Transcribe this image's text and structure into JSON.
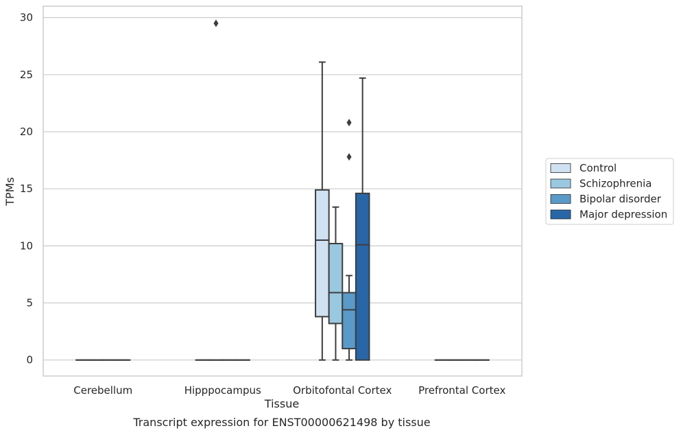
{
  "chart_data": {
    "type": "boxplot",
    "title": "Transcript expression for ENST00000621498 by tissue",
    "xlabel": "Tissue",
    "ylabel": "TPMs",
    "ylim": [
      -1.4,
      31
    ],
    "yticks": [
      0,
      5,
      10,
      15,
      20,
      25,
      30
    ],
    "grid": "horizontal",
    "legend_position": "right",
    "categories": [
      "Cerebellum",
      "Hipppocampus",
      "Orbitofontal Cortex",
      "Prefrontal Cortex"
    ],
    "series": [
      {
        "name": "Control",
        "color": "#d0e1f2",
        "boxes": [
          {
            "category": "Cerebellum",
            "whisker_low": 0,
            "q1": 0,
            "median": 0,
            "q3": 0,
            "whisker_high": 0,
            "outliers": []
          },
          {
            "category": "Hipppocampus",
            "whisker_low": 0,
            "q1": 0,
            "median": 0,
            "q3": 0,
            "whisker_high": 0,
            "outliers": []
          },
          {
            "category": "Orbitofontal Cortex",
            "whisker_low": 0,
            "q1": 3.8,
            "median": 10.5,
            "q3": 14.9,
            "whisker_high": 26.1,
            "outliers": []
          },
          {
            "category": "Prefrontal Cortex",
            "whisker_low": 0,
            "q1": 0,
            "median": 0,
            "q3": 0,
            "whisker_high": 0,
            "outliers": []
          }
        ]
      },
      {
        "name": "Schizophrenia",
        "color": "#9ac8e0",
        "boxes": [
          {
            "category": "Cerebellum",
            "whisker_low": 0,
            "q1": 0,
            "median": 0,
            "q3": 0,
            "whisker_high": 0,
            "outliers": []
          },
          {
            "category": "Hipppocampus",
            "whisker_low": 0,
            "q1": 0,
            "median": 0,
            "q3": 0,
            "whisker_high": 0,
            "outliers": [
              29.5
            ]
          },
          {
            "category": "Orbitofontal Cortex",
            "whisker_low": 0,
            "q1": 3.2,
            "median": 5.9,
            "q3": 10.2,
            "whisker_high": 13.4,
            "outliers": []
          },
          {
            "category": "Prefrontal Cortex",
            "whisker_low": 0,
            "q1": 0,
            "median": 0,
            "q3": 0,
            "whisker_high": 0,
            "outliers": []
          }
        ]
      },
      {
        "name": "Bipolar disorder",
        "color": "#5a9ac9",
        "boxes": [
          {
            "category": "Cerebellum",
            "whisker_low": 0,
            "q1": 0,
            "median": 0,
            "q3": 0,
            "whisker_high": 0,
            "outliers": []
          },
          {
            "category": "Hipppocampus",
            "whisker_low": 0,
            "q1": 0,
            "median": 0,
            "q3": 0,
            "whisker_high": 0,
            "outliers": []
          },
          {
            "category": "Orbitofontal Cortex",
            "whisker_low": 0,
            "q1": 1.0,
            "median": 4.4,
            "q3": 5.9,
            "whisker_high": 7.4,
            "outliers": [
              17.8,
              20.8
            ]
          },
          {
            "category": "Prefrontal Cortex",
            "whisker_low": 0,
            "q1": 0,
            "median": 0,
            "q3": 0,
            "whisker_high": 0,
            "outliers": []
          }
        ]
      },
      {
        "name": "Major depression",
        "color": "#2866a8",
        "boxes": [
          {
            "category": "Cerebellum",
            "whisker_low": 0,
            "q1": 0,
            "median": 0,
            "q3": 0,
            "whisker_high": 0,
            "outliers": []
          },
          {
            "category": "Hipppocampus",
            "whisker_low": 0,
            "q1": 0,
            "median": 0,
            "q3": 0,
            "whisker_high": 0,
            "outliers": []
          },
          {
            "category": "Orbitofontal Cortex",
            "whisker_low": 0,
            "q1": 0,
            "median": 10.1,
            "q3": 14.6,
            "whisker_high": 24.7,
            "outliers": []
          },
          {
            "category": "Prefrontal Cortex",
            "whisker_low": 0,
            "q1": 0,
            "median": 0,
            "q3": 0,
            "whisker_high": 0,
            "outliers": []
          }
        ]
      }
    ],
    "style": {
      "grid_color": "#cccccc",
      "frame_color": "#cccccc",
      "line_color": "#3d3d3d",
      "text_color": "#262626",
      "legend_border": "#cccccc"
    }
  }
}
